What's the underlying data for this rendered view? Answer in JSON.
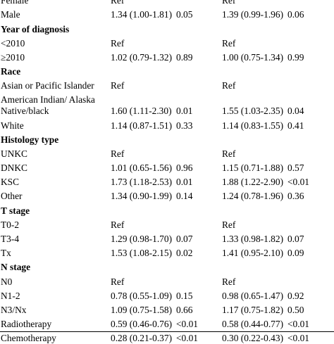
{
  "rows": [
    {
      "type": "single",
      "cells": [
        "Female",
        "Ref",
        "",
        "Ref",
        ""
      ]
    },
    {
      "type": "single",
      "cells": [
        "Male",
        "1.34 (1.00-1.81)",
        "0.05",
        "1.39 (0.99-1.96)",
        "0.06"
      ]
    },
    {
      "type": "section",
      "cells": [
        "Year of diagnosis",
        "",
        "",
        "",
        ""
      ]
    },
    {
      "type": "single",
      "cells": [
        "<2010",
        "Ref",
        "",
        "Ref",
        ""
      ]
    },
    {
      "type": "single",
      "cells": [
        "≥2010",
        "1.02 (0.79-1.32)",
        "0.89",
        "1.00 (0.75-1.34)",
        "0.99"
      ]
    },
    {
      "type": "section",
      "cells": [
        "Race",
        "",
        "",
        "",
        ""
      ]
    },
    {
      "type": "single",
      "cells": [
        "Asian or Pacific Islander",
        "Ref",
        "",
        "Ref",
        ""
      ]
    },
    {
      "type": "double",
      "cells": [
        "American Indian/ Alaska Native/black",
        "1.60 (1.11-2.30)",
        "0.01",
        "1.55 (1.03-2.35)",
        "0.04"
      ]
    },
    {
      "type": "single",
      "cells": [
        "White",
        "1.14 (0.87-1.51)",
        "0.33",
        "1.14 (0.83-1.55)",
        "0.41"
      ]
    },
    {
      "type": "section",
      "cells": [
        "Histology type",
        "",
        "",
        "",
        ""
      ]
    },
    {
      "type": "single",
      "cells": [
        "UNKC",
        "Ref",
        "",
        "Ref",
        ""
      ]
    },
    {
      "type": "single",
      "cells": [
        "DNKC",
        "1.01 (0.65-1.56)",
        "0.96",
        "1.15 (0.71-1.88)",
        "0.57"
      ]
    },
    {
      "type": "single",
      "cells": [
        "KSC",
        "1.73 (1.18-2.53)",
        "0.01",
        "1.88 (1.22-2.90)",
        "<0.01"
      ]
    },
    {
      "type": "single",
      "cells": [
        "Other",
        "1.34 (0.90-1.99)",
        "0.14",
        "1.24 (0.78-1.96)",
        "0.36"
      ]
    },
    {
      "type": "section",
      "cells": [
        "T stage",
        "",
        "",
        "",
        ""
      ]
    },
    {
      "type": "single",
      "cells": [
        "T0-2",
        "Ref",
        "",
        "Ref",
        ""
      ]
    },
    {
      "type": "single",
      "cells": [
        "T3-4",
        "1.29 (0.98-1.70)",
        "0.07",
        "1.33 (0.98-1.82)",
        "0.07"
      ]
    },
    {
      "type": "single",
      "cells": [
        "Tx",
        "1.53 (1.08-2.15)",
        "0.02",
        "1.41 (0.95-2.10)",
        "0.09"
      ]
    },
    {
      "type": "section",
      "cells": [
        "N stage",
        "",
        "",
        "",
        ""
      ]
    },
    {
      "type": "single",
      "cells": [
        "N0",
        "Ref",
        "",
        "Ref",
        ""
      ]
    },
    {
      "type": "single",
      "cells": [
        "N1-2",
        "0.78 (0.55-1.09)",
        "0.15",
        "0.98 (0.65-1.47)",
        "0.92"
      ]
    },
    {
      "type": "single",
      "cells": [
        "N3/Nx",
        "1.09 (0.75-1.58)",
        "0.66",
        "1.17 (0.75-1.82)",
        "0.50"
      ]
    },
    {
      "type": "single",
      "cells": [
        "Radiotherapy",
        "0.59 (0.46-0.76)",
        "<0.01",
        "0.58 (0.44-0.77)",
        "<0.01"
      ]
    },
    {
      "type": "single",
      "cells": [
        "Chemotherapy",
        "0.28 (0.21-0.37)",
        "<0.01",
        "0.30 (0.22-0.43)",
        "<0.01"
      ]
    }
  ]
}
